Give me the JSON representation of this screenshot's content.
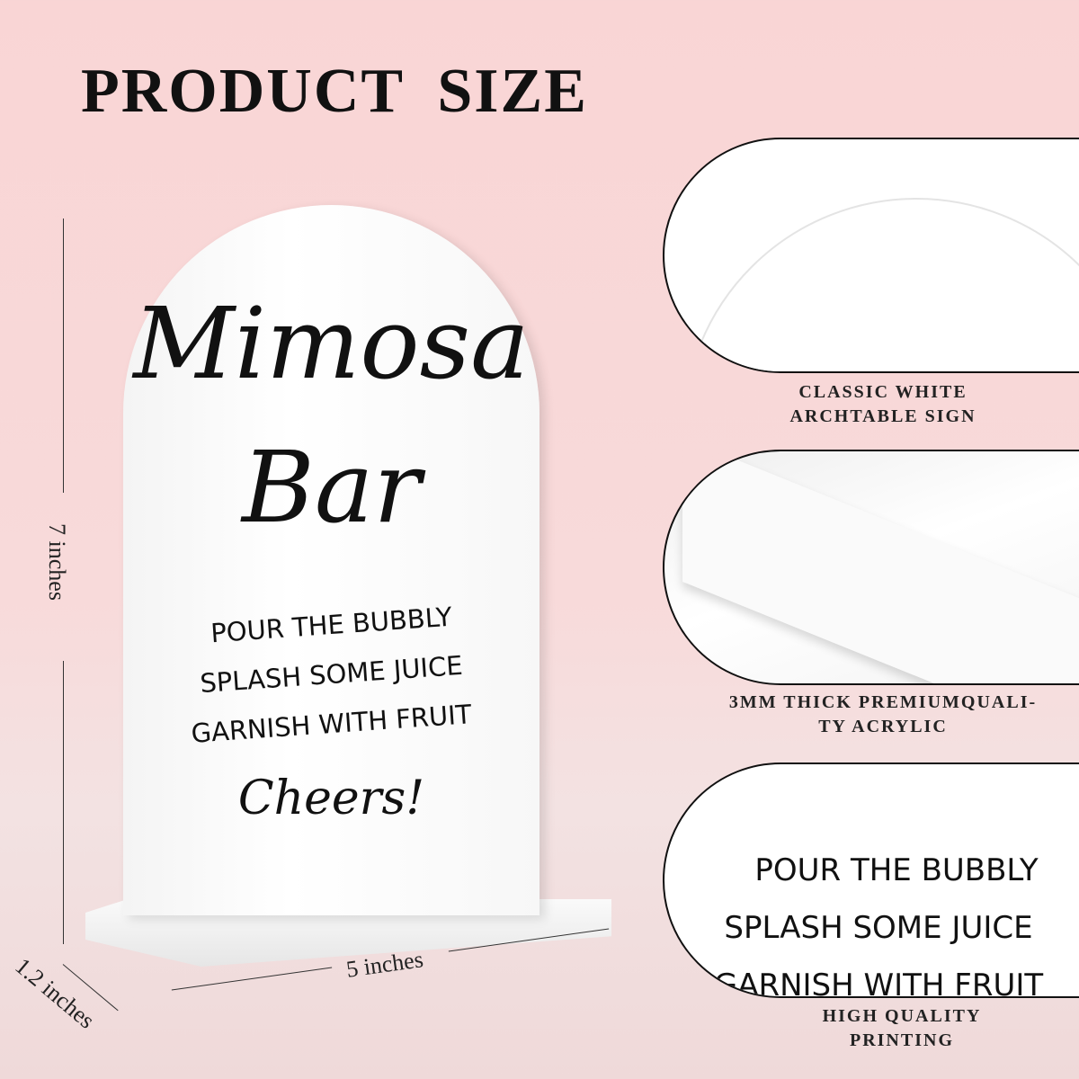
{
  "title": "PRODUCT SIZE",
  "sign": {
    "line1": "Mimosa",
    "line2": "Bar",
    "steps": [
      "POUR THE BUBBLY",
      "SPLASH SOME JUICE",
      "GARNISH WITH FRUIT"
    ],
    "closing": "Cheers!"
  },
  "dimensions": {
    "height": "7 inches",
    "width": "5 inches",
    "depth": "1.2 inches"
  },
  "panels": [
    {
      "caption": [
        "CLASSIC WHITE",
        "ARCHTABLE SIGN"
      ]
    },
    {
      "caption": [
        "3MM THICK PREMIUMQUALI-",
        "TY ACRYLIC"
      ]
    },
    {
      "caption": [
        "HIGH QUALITY",
        "PRINTING"
      ],
      "text": [
        "POUR THE BUBBLY",
        "SPLASH SOME JUICE",
        "GARNISH WITH FRUIT"
      ]
    }
  ],
  "colors": {
    "background": "#f9d5d5",
    "text": "#111111",
    "sign": "#ffffff"
  }
}
